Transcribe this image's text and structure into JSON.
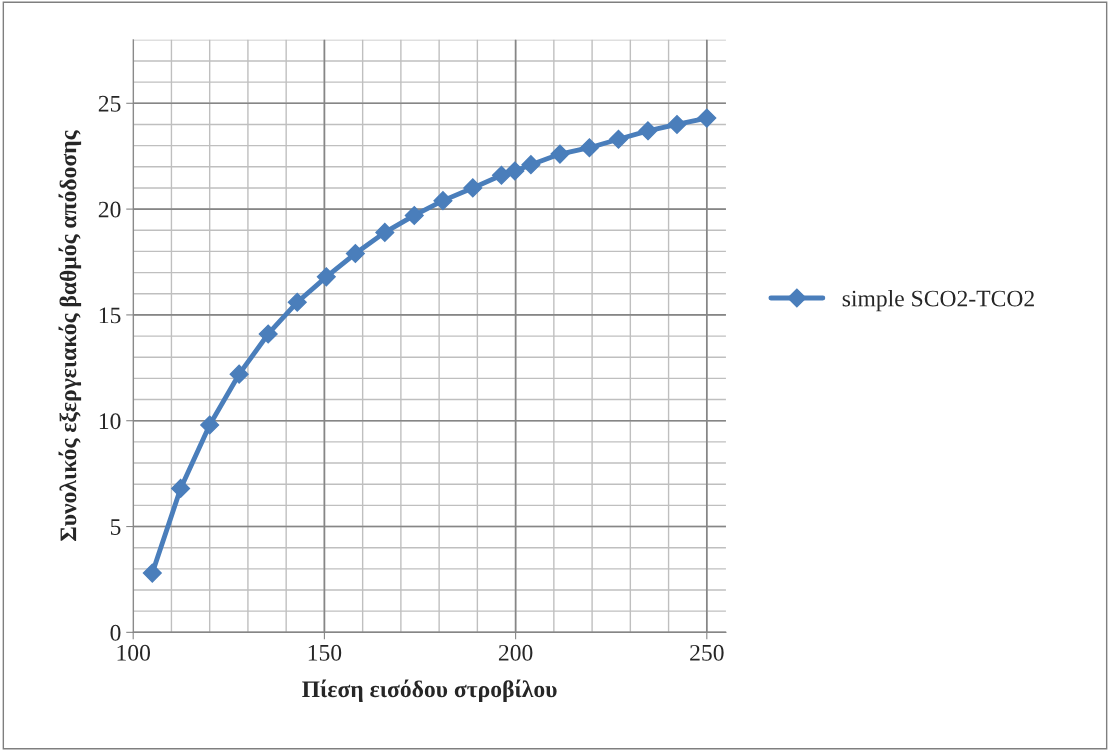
{
  "chart_data": {
    "type": "line",
    "xlabel": "Πίεση εισόδου στροβίλου",
    "ylabel": "Συνολικός εξεργειακός βαθμός απόδοσης",
    "x": [
      105,
      112.4,
      120,
      127.7,
      135.3,
      142.9,
      150.5,
      158.1,
      165.8,
      173.5,
      181,
      188.8,
      196.3,
      199.8,
      204,
      211.6,
      219.3,
      226.9,
      234.6,
      242.2,
      250
    ],
    "series": [
      {
        "name": "simple SCO2-TCO2",
        "color": "#4a7ebb",
        "values": [
          2.8,
          6.8,
          9.8,
          12.2,
          14.1,
          15.6,
          16.8,
          17.9,
          18.9,
          19.7,
          20.4,
          21.0,
          21.6,
          21.8,
          22.1,
          22.6,
          22.9,
          23.3,
          23.7,
          24.0,
          24.3
        ]
      }
    ],
    "xlim": [
      100,
      255
    ],
    "xticks": [
      100,
      150,
      200,
      250
    ],
    "ylim": [
      0,
      28
    ],
    "yticks": [
      0,
      5,
      10,
      15,
      20,
      25
    ],
    "grid": true,
    "legend": "right",
    "marker": "diamond",
    "line_style": "solid"
  }
}
